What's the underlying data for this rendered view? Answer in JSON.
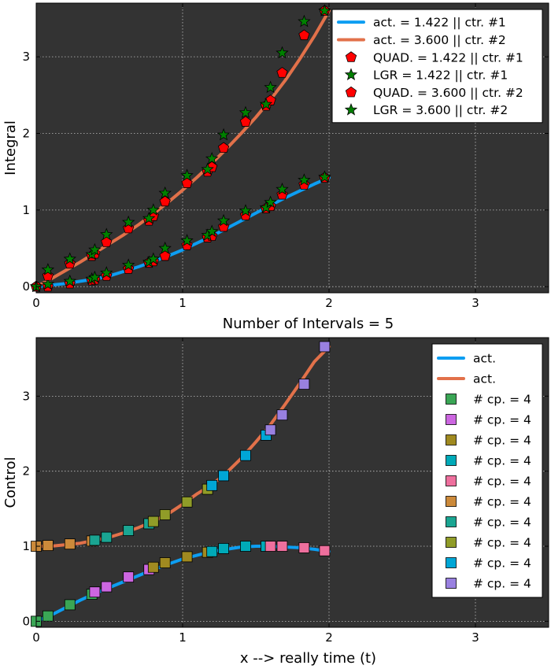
{
  "colors": {
    "background": "#333333",
    "grid": "#bfbfbf",
    "act1": "#0d9ef2",
    "act2": "#e2714a",
    "quad": "#ff0000",
    "lgr": "#008000",
    "marker_edge": "#000000"
  },
  "chart_data": [
    {
      "type": "line",
      "title": "",
      "xlabel": "Number of Intervals = 5",
      "ylabel": "Integral",
      "xlim": [
        0,
        3.5
      ],
      "ylim": [
        -0.08,
        3.7
      ],
      "xticks": [
        0,
        1,
        2,
        3
      ],
      "yticks": [
        0,
        1,
        2,
        3
      ],
      "grid": true,
      "legend_position": "top-right",
      "curves": [
        {
          "name": "act. = 1.422 || ctr. #1",
          "color_key": "act1",
          "fn": "x^3/6 + x^2/2 - 0.5*x + ... ",
          "x_start": 0,
          "x_end": 2,
          "x": [
            0,
            0.1,
            0.2,
            0.3,
            0.4,
            0.5,
            0.6,
            0.7,
            0.8,
            0.9,
            1.0,
            1.1,
            1.2,
            1.3,
            1.4,
            1.5,
            1.6,
            1.7,
            1.8,
            1.9,
            2.0
          ],
          "y": [
            0,
            0.02,
            0.04,
            0.07,
            0.1,
            0.14,
            0.2,
            0.26,
            0.33,
            0.4,
            0.48,
            0.57,
            0.66,
            0.76,
            0.86,
            0.96,
            1.06,
            1.16,
            1.25,
            1.34,
            1.422
          ]
        },
        {
          "name": "act. = 3.600 || ctr. #2",
          "color_key": "act2",
          "x_start": 0,
          "x_end": 2,
          "x": [
            0,
            0.1,
            0.2,
            0.3,
            0.4,
            0.5,
            0.6,
            0.7,
            0.8,
            0.9,
            1.0,
            1.1,
            1.2,
            1.3,
            1.4,
            1.5,
            1.6,
            1.7,
            1.8,
            1.9,
            2.0
          ],
          "y": [
            0,
            0.1,
            0.21,
            0.32,
            0.44,
            0.56,
            0.68,
            0.81,
            0.95,
            1.1,
            1.26,
            1.43,
            1.61,
            1.8,
            2.0,
            2.21,
            2.44,
            2.69,
            2.97,
            3.27,
            3.6
          ]
        }
      ],
      "series": [
        {
          "name": "QUAD. = 1.422 || ctr. #1",
          "marker": "pentagon",
          "color_key": "quad",
          "x": [
            0.0,
            0.08,
            0.23,
            0.38,
            0.4,
            0.48,
            0.63,
            0.77,
            0.8,
            0.88,
            1.03,
            1.17,
            1.2,
            1.28,
            1.43,
            1.57,
            1.6,
            1.68,
            1.83,
            1.97
          ],
          "y": [
            0.0,
            0.0,
            0.04,
            0.08,
            0.09,
            0.14,
            0.23,
            0.31,
            0.33,
            0.4,
            0.54,
            0.64,
            0.66,
            0.78,
            0.93,
            1.02,
            1.05,
            1.2,
            1.33,
            1.42
          ]
        },
        {
          "name": "LGR  = 1.422 || ctr. #1",
          "marker": "star",
          "color_key": "lgr",
          "x": [
            0.0,
            0.08,
            0.23,
            0.38,
            0.4,
            0.48,
            0.63,
            0.77,
            0.8,
            0.88,
            1.03,
            1.17,
            1.2,
            1.28,
            1.43,
            1.57,
            1.6,
            1.68,
            1.83,
            1.97
          ],
          "y": [
            0.0,
            0.03,
            0.07,
            0.1,
            0.12,
            0.18,
            0.28,
            0.32,
            0.36,
            0.5,
            0.6,
            0.67,
            0.72,
            0.86,
            0.99,
            1.03,
            1.1,
            1.27,
            1.39,
            1.43
          ]
        },
        {
          "name": "QUAD. = 3.600 || ctr. #2",
          "marker": "pentagon",
          "color_key": "quad",
          "x": [
            0.0,
            0.08,
            0.23,
            0.38,
            0.4,
            0.48,
            0.63,
            0.77,
            0.8,
            0.88,
            1.03,
            1.17,
            1.2,
            1.28,
            1.43,
            1.57,
            1.6,
            1.68,
            1.83,
            1.97
          ],
          "y": [
            0.0,
            0.14,
            0.3,
            0.4,
            0.43,
            0.58,
            0.76,
            0.86,
            0.92,
            1.11,
            1.35,
            1.5,
            1.56,
            1.81,
            2.15,
            2.36,
            2.43,
            2.79,
            3.28,
            3.6
          ]
        },
        {
          "name": "LGR  = 3.600 || ctr. #2",
          "marker": "star",
          "color_key": "lgr",
          "x": [
            0.0,
            0.08,
            0.23,
            0.38,
            0.4,
            0.48,
            0.63,
            0.77,
            0.8,
            0.88,
            1.03,
            1.17,
            1.2,
            1.28,
            1.43,
            1.57,
            1.6,
            1.68,
            1.83,
            1.97
          ],
          "y": [
            0.0,
            0.22,
            0.36,
            0.42,
            0.48,
            0.68,
            0.84,
            0.89,
            1.0,
            1.22,
            1.45,
            1.53,
            1.67,
            1.98,
            2.27,
            2.38,
            2.6,
            3.05,
            3.46,
            3.6
          ]
        }
      ]
    },
    {
      "type": "line",
      "title": "",
      "xlabel": "x --> really time (t)",
      "ylabel": "Control",
      "xlim": [
        0,
        3.5
      ],
      "ylim": [
        -0.08,
        3.78
      ],
      "xticks": [
        0,
        1,
        2,
        3
      ],
      "yticks": [
        0,
        1,
        2,
        3
      ],
      "grid": true,
      "legend_position": "top-right",
      "curves": [
        {
          "name": "act.",
          "color_key": "act1",
          "x": [
            0,
            0.1,
            0.2,
            0.3,
            0.4,
            0.5,
            0.6,
            0.7,
            0.8,
            0.9,
            1.0,
            1.1,
            1.2,
            1.3,
            1.4,
            1.5,
            1.6,
            1.7,
            1.8,
            1.9,
            2.0
          ],
          "y": [
            0,
            0.08,
            0.18,
            0.28,
            0.37,
            0.45,
            0.53,
            0.61,
            0.69,
            0.76,
            0.83,
            0.88,
            0.93,
            0.96,
            0.99,
            1.0,
            1.0,
            0.99,
            0.98,
            0.96,
            0.93
          ]
        },
        {
          "name": "act.",
          "color_key": "act2",
          "x": [
            0,
            0.1,
            0.2,
            0.3,
            0.4,
            0.5,
            0.6,
            0.7,
            0.8,
            0.9,
            1.0,
            1.1,
            1.2,
            1.3,
            1.4,
            1.5,
            1.6,
            1.7,
            1.8,
            1.9,
            2.0
          ],
          "y": [
            1.0,
            1.0,
            1.02,
            1.04,
            1.08,
            1.12,
            1.18,
            1.25,
            1.33,
            1.43,
            1.56,
            1.7,
            1.82,
            1.98,
            2.17,
            2.39,
            2.62,
            2.89,
            3.17,
            3.46,
            3.66
          ]
        }
      ],
      "series": [
        {
          "name": "# cp. = 4",
          "marker": "square",
          "color": "#3aa655",
          "x": [
            0.0,
            0.08,
            0.23,
            0.38
          ],
          "y": [
            0.0,
            0.07,
            0.22,
            0.36
          ]
        },
        {
          "name": "# cp. = 4",
          "marker": "square",
          "color": "#cc66e0",
          "x": [
            0.4,
            0.48,
            0.63,
            0.77
          ],
          "y": [
            0.39,
            0.46,
            0.59,
            0.69
          ]
        },
        {
          "name": "# cp. = 4",
          "marker": "square",
          "color": "#a08a20",
          "x": [
            0.8,
            0.88,
            1.03,
            1.17
          ],
          "y": [
            0.72,
            0.78,
            0.86,
            0.92
          ]
        },
        {
          "name": "# cp. = 4",
          "marker": "square",
          "color": "#00aab8",
          "x": [
            1.2,
            1.28,
            1.43,
            1.57
          ],
          "y": [
            0.93,
            0.97,
            1.0,
            1.0
          ]
        },
        {
          "name": "# cp. = 4",
          "marker": "square",
          "color": "#ee6f9d",
          "x": [
            1.6,
            1.68,
            1.83,
            1.97
          ],
          "y": [
            1.0,
            1.0,
            0.98,
            0.94
          ]
        },
        {
          "name": "# cp. = 4",
          "marker": "square",
          "color": "#cc8a3a",
          "x": [
            0.0,
            0.08,
            0.23,
            0.38
          ],
          "y": [
            1.0,
            1.01,
            1.03,
            1.07
          ]
        },
        {
          "name": "# cp. = 4",
          "marker": "square",
          "color": "#1aa592",
          "x": [
            0.4,
            0.48,
            0.63,
            0.77
          ],
          "y": [
            1.08,
            1.12,
            1.21,
            1.3
          ]
        },
        {
          "name": "# cp. = 4",
          "marker": "square",
          "color": "#909c28",
          "x": [
            0.8,
            0.88,
            1.03,
            1.17
          ],
          "y": [
            1.33,
            1.42,
            1.59,
            1.76
          ]
        },
        {
          "name": "# cp. = 4",
          "marker": "square",
          "color": "#00a6d6",
          "x": [
            1.2,
            1.28,
            1.43,
            1.57
          ],
          "y": [
            1.81,
            1.94,
            2.21,
            2.48
          ]
        },
        {
          "name": "# cp. = 4",
          "marker": "square",
          "color": "#9980e0",
          "x": [
            1.6,
            1.68,
            1.83,
            1.97
          ],
          "y": [
            2.55,
            2.75,
            3.16,
            3.66
          ]
        }
      ]
    }
  ]
}
